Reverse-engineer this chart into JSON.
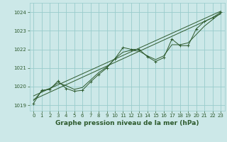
{
  "title": "Graphe pression niveau de la mer (hPa)",
  "bg_color": "#cce8e8",
  "grid_color": "#99cccc",
  "line_color": "#2d5a2d",
  "text_color": "#2d5a2d",
  "xlim": [
    -0.5,
    23.5
  ],
  "ylim": [
    1018.7,
    1024.5
  ],
  "yticks": [
    1019,
    1020,
    1021,
    1022,
    1023,
    1024
  ],
  "xticks": [
    0,
    1,
    2,
    3,
    4,
    5,
    6,
    7,
    8,
    9,
    10,
    11,
    12,
    13,
    14,
    15,
    16,
    17,
    18,
    19,
    20,
    21,
    22,
    23
  ],
  "main_x": [
    0,
    1,
    2,
    3,
    4,
    5,
    6,
    7,
    8,
    9,
    10,
    11,
    12,
    13,
    14,
    15,
    16,
    17,
    18,
    19,
    20,
    21,
    22,
    23
  ],
  "main_y": [
    1019.1,
    1019.8,
    1019.85,
    1020.3,
    1019.9,
    1019.75,
    1019.8,
    1020.25,
    1020.65,
    1021.0,
    1021.5,
    1022.1,
    1022.0,
    1022.0,
    1021.6,
    1021.35,
    1021.55,
    1022.55,
    1022.2,
    1022.2,
    1023.1,
    1023.5,
    1023.7,
    1024.0
  ],
  "line1_x": [
    0,
    23
  ],
  "line1_y": [
    1019.3,
    1023.9
  ],
  "line2_x": [
    0,
    23
  ],
  "line2_y": [
    1019.5,
    1024.05
  ],
  "smooth_x": [
    0,
    1,
    2,
    3,
    4,
    5,
    6,
    7,
    8,
    9,
    10,
    11,
    12,
    13,
    14,
    15,
    16,
    17,
    18,
    19,
    20,
    21,
    22,
    23
  ],
  "smooth_y": [
    1019.25,
    1019.75,
    1019.9,
    1020.2,
    1020.05,
    1019.85,
    1019.95,
    1020.35,
    1020.75,
    1021.05,
    1021.5,
    1021.85,
    1021.95,
    1021.9,
    1021.65,
    1021.45,
    1021.65,
    1022.25,
    1022.25,
    1022.35,
    1022.8,
    1023.25,
    1023.6,
    1023.95
  ],
  "xlabel_fontsize": 6.5,
  "tick_fontsize": 5.0
}
